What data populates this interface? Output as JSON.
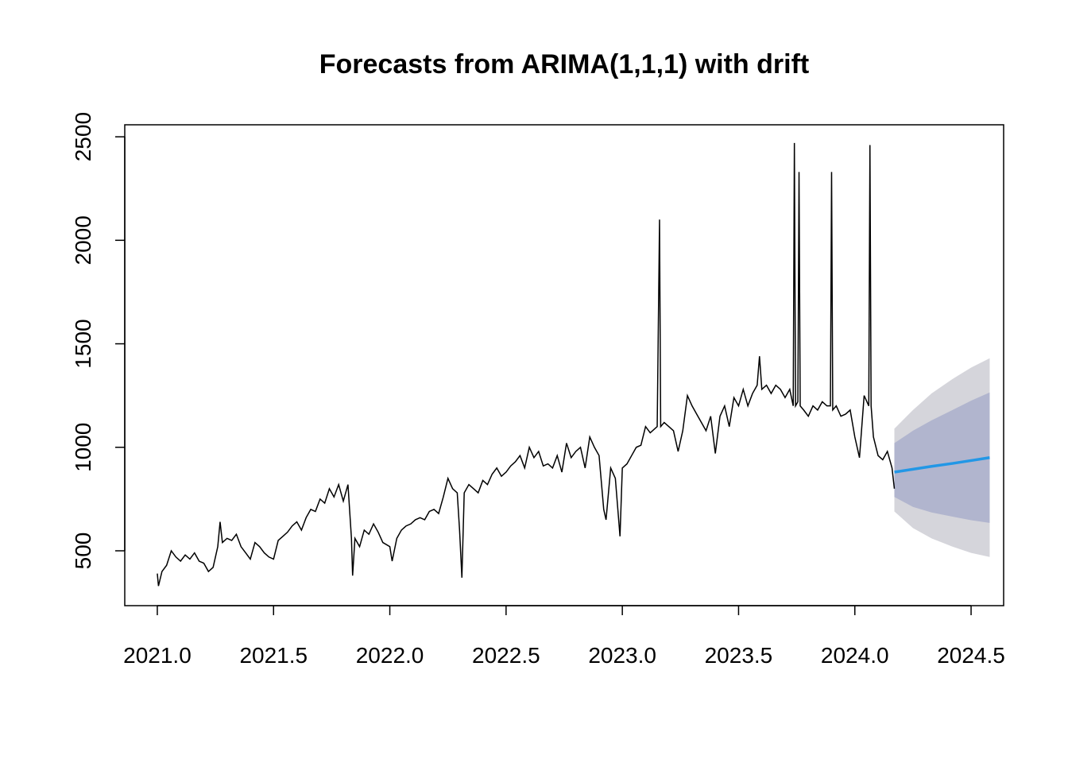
{
  "chart_data": {
    "type": "line",
    "title": "Forecasts from ARIMA(1,1,1) with drift",
    "xlim": [
      2020.86,
      2024.64
    ],
    "ylim": [
      235,
      2558
    ],
    "xticks": [
      {
        "value": 2021.0,
        "label": "2021.0"
      },
      {
        "value": 2021.5,
        "label": "2021.5"
      },
      {
        "value": 2022.0,
        "label": "2022.0"
      },
      {
        "value": 2022.5,
        "label": "2022.5"
      },
      {
        "value": 2023.0,
        "label": "2023.0"
      },
      {
        "value": 2023.5,
        "label": "2023.5"
      },
      {
        "value": 2024.0,
        "label": "2024.0"
      },
      {
        "value": 2024.5,
        "label": "2024.5"
      }
    ],
    "yticks": [
      500,
      1000,
      1500,
      2000,
      2500
    ],
    "series": [
      {
        "color": "#000000",
        "x": [
          2021.0,
          2021.005,
          2021.02,
          2021.04,
          2021.06,
          2021.08,
          2021.1,
          2021.12,
          2021.14,
          2021.16,
          2021.18,
          2021.2,
          2021.22,
          2021.24,
          2021.26,
          2021.27,
          2021.28,
          2021.3,
          2021.32,
          2021.34,
          2021.36,
          2021.38,
          2021.4,
          2021.42,
          2021.44,
          2021.46,
          2021.48,
          2021.5,
          2021.52,
          2021.54,
          2021.56,
          2021.58,
          2021.6,
          2021.62,
          2021.64,
          2021.66,
          2021.68,
          2021.7,
          2021.72,
          2021.74,
          2021.76,
          2021.78,
          2021.8,
          2021.82,
          2021.835,
          2021.84,
          2021.85,
          2021.87,
          2021.89,
          2021.91,
          2021.93,
          2021.95,
          2021.97,
          2022.0,
          2022.01,
          2022.03,
          2022.05,
          2022.07,
          2022.09,
          2022.11,
          2022.13,
          2022.15,
          2022.17,
          2022.19,
          2022.21,
          2022.23,
          2022.25,
          2022.27,
          2022.29,
          2022.3,
          2022.31,
          2022.32,
          2022.34,
          2022.36,
          2022.38,
          2022.4,
          2022.42,
          2022.44,
          2022.46,
          2022.48,
          2022.5,
          2022.52,
          2022.54,
          2022.56,
          2022.58,
          2022.6,
          2022.62,
          2022.64,
          2022.66,
          2022.68,
          2022.7,
          2022.72,
          2022.74,
          2022.76,
          2022.78,
          2022.8,
          2022.82,
          2022.84,
          2022.86,
          2022.88,
          2022.9,
          2022.92,
          2022.93,
          2022.95,
          2022.97,
          2022.99,
          2023.0,
          2023.02,
          2023.04,
          2023.06,
          2023.08,
          2023.1,
          2023.12,
          2023.15,
          2023.16,
          2023.165,
          2023.18,
          2023.2,
          2023.22,
          2023.24,
          2023.26,
          2023.28,
          2023.3,
          2023.32,
          2023.34,
          2023.36,
          2023.38,
          2023.4,
          2023.42,
          2023.44,
          2023.46,
          2023.48,
          2023.5,
          2023.52,
          2023.54,
          2023.56,
          2023.58,
          2023.59,
          2023.6,
          2023.62,
          2023.64,
          2023.66,
          2023.68,
          2023.7,
          2023.72,
          2023.735,
          2023.74,
          2023.745,
          2023.755,
          2023.76,
          2023.765,
          2023.78,
          2023.8,
          2023.82,
          2023.84,
          2023.86,
          2023.88,
          2023.895,
          2023.9,
          2023.905,
          2023.92,
          2023.94,
          2023.96,
          2023.98,
          2024.0,
          2024.02,
          2024.04,
          2024.06,
          2024.065,
          2024.07,
          2024.08,
          2024.1,
          2024.12,
          2024.14,
          2024.16,
          2024.17
        ],
        "values": [
          390,
          330,
          400,
          430,
          500,
          470,
          450,
          480,
          460,
          490,
          450,
          440,
          400,
          420,
          520,
          640,
          540,
          560,
          550,
          580,
          520,
          490,
          460,
          540,
          520,
          490,
          470,
          460,
          550,
          570,
          590,
          620,
          640,
          600,
          660,
          700,
          690,
          750,
          730,
          800,
          760,
          820,
          740,
          820,
          560,
          380,
          560,
          520,
          600,
          580,
          630,
          590,
          540,
          520,
          450,
          560,
          600,
          620,
          630,
          650,
          660,
          650,
          690,
          700,
          680,
          760,
          850,
          800,
          780,
          600,
          370,
          780,
          820,
          800,
          780,
          840,
          820,
          870,
          900,
          860,
          880,
          910,
          930,
          960,
          900,
          1000,
          950,
          980,
          910,
          920,
          900,
          960,
          880,
          1020,
          950,
          980,
          1000,
          900,
          1050,
          1000,
          960,
          700,
          650,
          900,
          850,
          570,
          900,
          920,
          960,
          1000,
          1010,
          1100,
          1070,
          1100,
          2100,
          1100,
          1120,
          1100,
          1080,
          980,
          1080,
          1250,
          1200,
          1160,
          1120,
          1080,
          1150,
          970,
          1150,
          1200,
          1100,
          1240,
          1200,
          1280,
          1200,
          1260,
          1300,
          1440,
          1280,
          1300,
          1260,
          1300,
          1280,
          1240,
          1280,
          1200,
          2470,
          1200,
          1220,
          2330,
          1200,
          1180,
          1150,
          1200,
          1180,
          1220,
          1200,
          1200,
          2330,
          1180,
          1200,
          1150,
          1160,
          1180,
          1050,
          950,
          1250,
          1200,
          2460,
          1200,
          1050,
          960,
          940,
          980,
          900,
          800
        ]
      }
    ],
    "forecast": {
      "x": [
        2024.17,
        2024.25,
        2024.33,
        2024.42,
        2024.5,
        2024.58
      ],
      "mean": [
        880,
        894,
        908,
        922,
        936,
        950
      ],
      "lower80": [
        760,
        712,
        685,
        665,
        648,
        635
      ],
      "upper80": [
        1020,
        1080,
        1130,
        1180,
        1225,
        1265
      ],
      "lower95": [
        690,
        610,
        560,
        520,
        490,
        470
      ],
      "upper95": [
        1090,
        1180,
        1260,
        1330,
        1385,
        1430
      ],
      "color": "#2297e6",
      "color80": "#b1b5ce",
      "color95": "#d5d5db"
    }
  }
}
